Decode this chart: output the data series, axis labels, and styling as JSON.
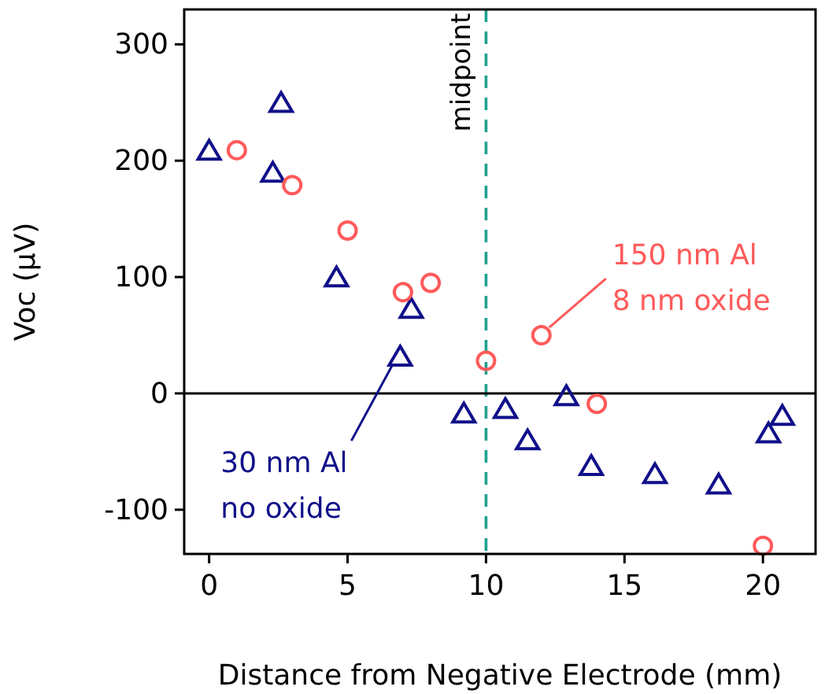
{
  "chart_data": {
    "type": "scatter",
    "xlabel": "Distance from Negative Electrode (mm)",
    "ylabel": "Voc (µV)",
    "xlim": [
      -0.9,
      21.9
    ],
    "xticks": [
      0,
      5,
      10,
      15,
      20
    ],
    "ylim": [
      -138,
      330
    ],
    "yticks": [
      -100,
      0,
      100,
      200,
      300
    ],
    "grid": false,
    "series": [
      {
        "color": "#10108a",
        "marker": "triangle",
        "x": [
          0,
          2.6,
          2.3,
          4.6,
          7.3,
          6.9,
          9.2,
          10.7,
          11.5,
          12.9,
          13.8,
          16.1,
          18.4,
          20.2,
          20.7
        ],
        "values": [
          208,
          249,
          189,
          99,
          72,
          31,
          -18,
          -14,
          -41,
          -3,
          -63,
          -70,
          -79,
          -35,
          -20
        ]
      },
      {
        "color": "#ff5a5a",
        "marker": "circle",
        "x": [
          1,
          3,
          5,
          7,
          8,
          10,
          12,
          14,
          20
        ],
        "values": [
          209,
          179,
          140,
          87,
          95,
          28,
          50,
          -9,
          -131
        ]
      }
    ],
    "ref_lines": [
      {
        "axis": "x",
        "value": 10,
        "label": "midpoint",
        "color": "#20a090",
        "line_style": "dashed"
      },
      {
        "axis": "y",
        "value": 0,
        "color": "#000000",
        "line_style": "solid"
      }
    ],
    "annotations": [
      {
        "text": "30 nm Al\nno oxide",
        "x": 6.9,
        "y": 31
      },
      {
        "text": "150 nm Al\n8 nm oxide",
        "x": 12,
        "y": 50
      }
    ]
  }
}
